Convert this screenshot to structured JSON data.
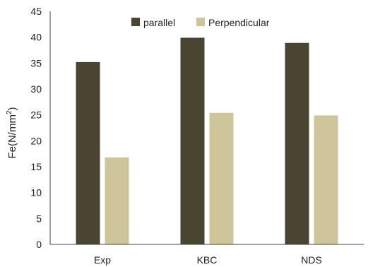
{
  "chart_data": {
    "type": "bar",
    "title": "",
    "xlabel": "",
    "ylabel": "Fe(N/mm",
    "ylabel_sup": "2",
    "ylabel_close": ")",
    "categories": [
      "Exp",
      "KBC",
      "NDS"
    ],
    "series": [
      {
        "name": "parallel",
        "values": [
          35.2,
          39.9,
          38.9
        ],
        "color": "#4a4530"
      },
      {
        "name": "Perpendicular",
        "values": [
          16.8,
          25.4,
          24.9
        ],
        "color": "#cec59b"
      }
    ],
    "ylim": [
      0,
      45
    ],
    "yticks": [
      0,
      5,
      10,
      15,
      20,
      25,
      30,
      35,
      40,
      45
    ],
    "grid": false,
    "legend_position": "top-right"
  }
}
